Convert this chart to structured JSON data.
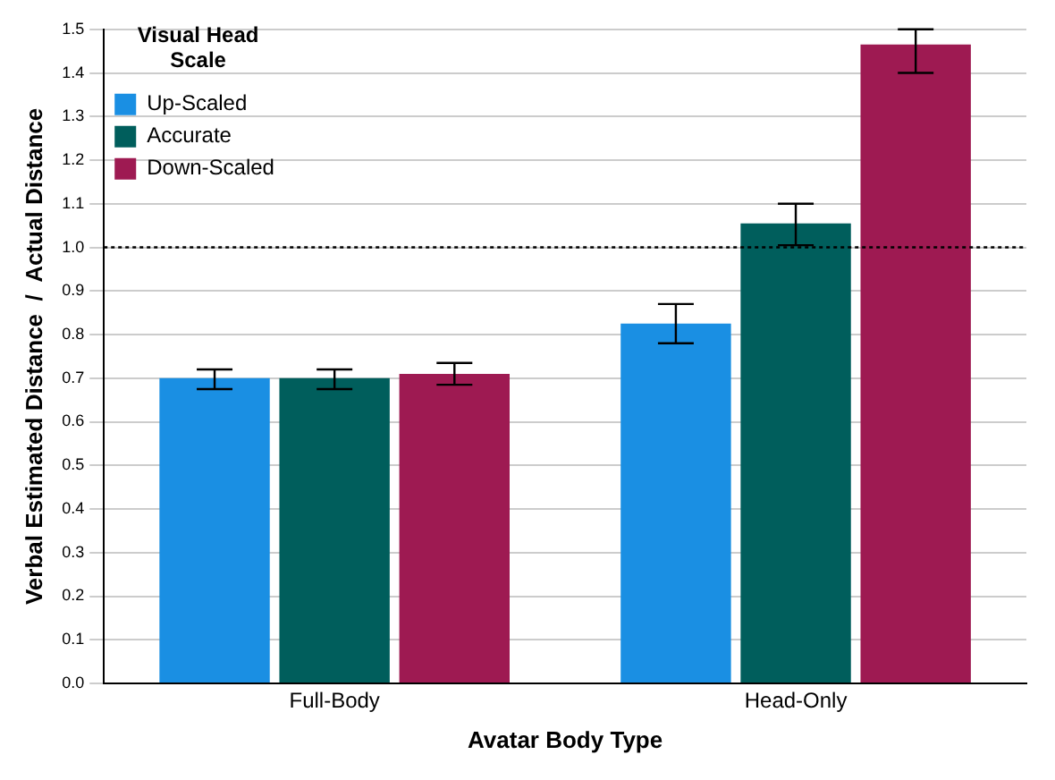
{
  "chart_data": {
    "type": "bar",
    "xlabel": "Avatar Body Type",
    "ylabel": "Verbal Estimated Distance  /  Actual Distance",
    "legend_title": "Visual Head Scale",
    "categories": [
      "Full-Body",
      "Head-Only"
    ],
    "series": [
      {
        "name": "Up-Scaled",
        "color": "#1a8fe3",
        "values": [
          0.7,
          0.825
        ],
        "errors": [
          [
            0.675,
            0.72
          ],
          [
            0.78,
            0.87
          ]
        ]
      },
      {
        "name": "Accurate",
        "color": "#005e5c",
        "values": [
          0.7,
          1.055
        ],
        "errors": [
          [
            0.675,
            0.72
          ],
          [
            1.005,
            1.1
          ]
        ]
      },
      {
        "name": "Down-Scaled",
        "color": "#9e1a52",
        "values": [
          0.71,
          1.465
        ],
        "errors": [
          [
            0.685,
            0.735
          ],
          [
            1.4,
            1.5
          ]
        ]
      }
    ],
    "ylim": [
      0,
      1.5
    ],
    "yticks": [
      {
        "value": 0,
        "label": "0.0"
      },
      0.1,
      0.2,
      0.3,
      0.4,
      0.5,
      0.6,
      0.7,
      0.8,
      0.9,
      {
        "value": 1,
        "label": "1.0"
      },
      1.1,
      1.2,
      1.3,
      1.4,
      1.5
    ],
    "grid": "y",
    "legend": "top left",
    "ref_lines": [
      {
        "axis": "y",
        "value": 1.0,
        "line_style": "dotted",
        "color": "#000000"
      }
    ]
  }
}
